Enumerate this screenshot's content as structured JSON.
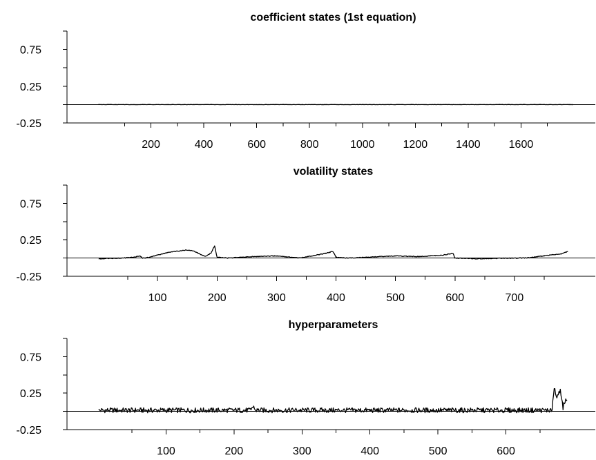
{
  "chart_data": [
    {
      "type": "line",
      "title": "coefficient states (1st equation)",
      "xlabel": "",
      "ylabel": "",
      "ylim": [
        -0.25,
        1.0
      ],
      "xlim": [
        0,
        1800
      ],
      "x_ticks": [
        200,
        400,
        600,
        800,
        1000,
        1200,
        1400,
        1600
      ],
      "x_tick_labels": [
        "200",
        "400",
        "600",
        "800",
        "1000",
        "1200",
        "1400",
        "1600"
      ],
      "y_tick_labels": [
        "0.75",
        "0.25",
        "-0.25"
      ],
      "zero_line": true,
      "grid": false,
      "series": [
        {
          "x": [
            1,
            1800
          ],
          "y": [
            0.0,
            0.0
          ],
          "color": "#000000"
        }
      ]
    },
    {
      "type": "line",
      "title": "volatility states",
      "xlabel": "",
      "ylabel": "",
      "ylim": [
        -0.25,
        1.0
      ],
      "xlim": [
        0,
        800
      ],
      "x_ticks": [
        100,
        200,
        300,
        400,
        500,
        600,
        700
      ],
      "x_tick_labels": [
        "100",
        "200",
        "300",
        "400",
        "500",
        "600",
        "700"
      ],
      "y_tick_labels": [
        "0.75",
        "0.25",
        "-0.25"
      ],
      "zero_line": true,
      "grid": false,
      "series": [
        {
          "x": [
            1,
            40,
            60,
            70,
            75,
            80,
            100,
            120,
            140,
            150,
            160,
            170,
            180,
            190,
            196,
            200,
            220,
            260,
            300,
            340,
            360,
            380,
            395,
            400,
            420,
            450,
            500,
            540,
            560,
            580,
            593,
            597,
            600,
            640,
            700,
            720,
            760,
            780,
            790
          ],
          "y": [
            -0.01,
            0.0,
            0.01,
            0.03,
            0.0,
            0.0,
            0.04,
            0.08,
            0.1,
            0.11,
            0.1,
            0.06,
            0.02,
            0.07,
            0.17,
            0.01,
            0.0,
            0.02,
            0.03,
            0.0,
            0.03,
            0.06,
            0.09,
            0.01,
            0.0,
            0.01,
            0.03,
            0.02,
            0.03,
            0.04,
            0.06,
            0.06,
            0.0,
            -0.01,
            0.0,
            0.0,
            0.04,
            0.06,
            0.09
          ],
          "color": "#000000"
        }
      ]
    },
    {
      "type": "line",
      "title": "hyperparameters",
      "xlabel": "",
      "ylabel": "",
      "ylim": [
        -0.25,
        1.0
      ],
      "xlim": [
        0,
        700
      ],
      "x_ticks": [
        100,
        200,
        300,
        400,
        500,
        600
      ],
      "x_tick_labels": [
        "100",
        "200",
        "300",
        "400",
        "500",
        "600"
      ],
      "y_tick_labels": [
        "0.75",
        "0.25",
        "-0.25"
      ],
      "zero_line": true,
      "grid": false,
      "series": [
        {
          "x_start": 1,
          "x_step": 1,
          "length": 690,
          "y_pattern": "noisy values near 0.0 (about -0.03 to 0.07) for x = 1 to 668; jump at about x = 670 to peaks near 0.33, then values between about 0.05 and 0.30 until x = 690",
          "y_key_points": [
            [
              1,
              0.06
            ],
            [
              100,
              0.01
            ],
            [
              228,
              0.07
            ],
            [
              400,
              0.0
            ],
            [
              600,
              0.02
            ],
            [
              668,
              0.01
            ],
            [
              671,
              0.33
            ],
            [
              675,
              0.22
            ],
            [
              680,
              0.28
            ],
            [
              684,
              0.05
            ],
            [
              687,
              0.15
            ],
            [
              690,
              0.19
            ]
          ],
          "color": "#000000"
        }
      ]
    }
  ]
}
